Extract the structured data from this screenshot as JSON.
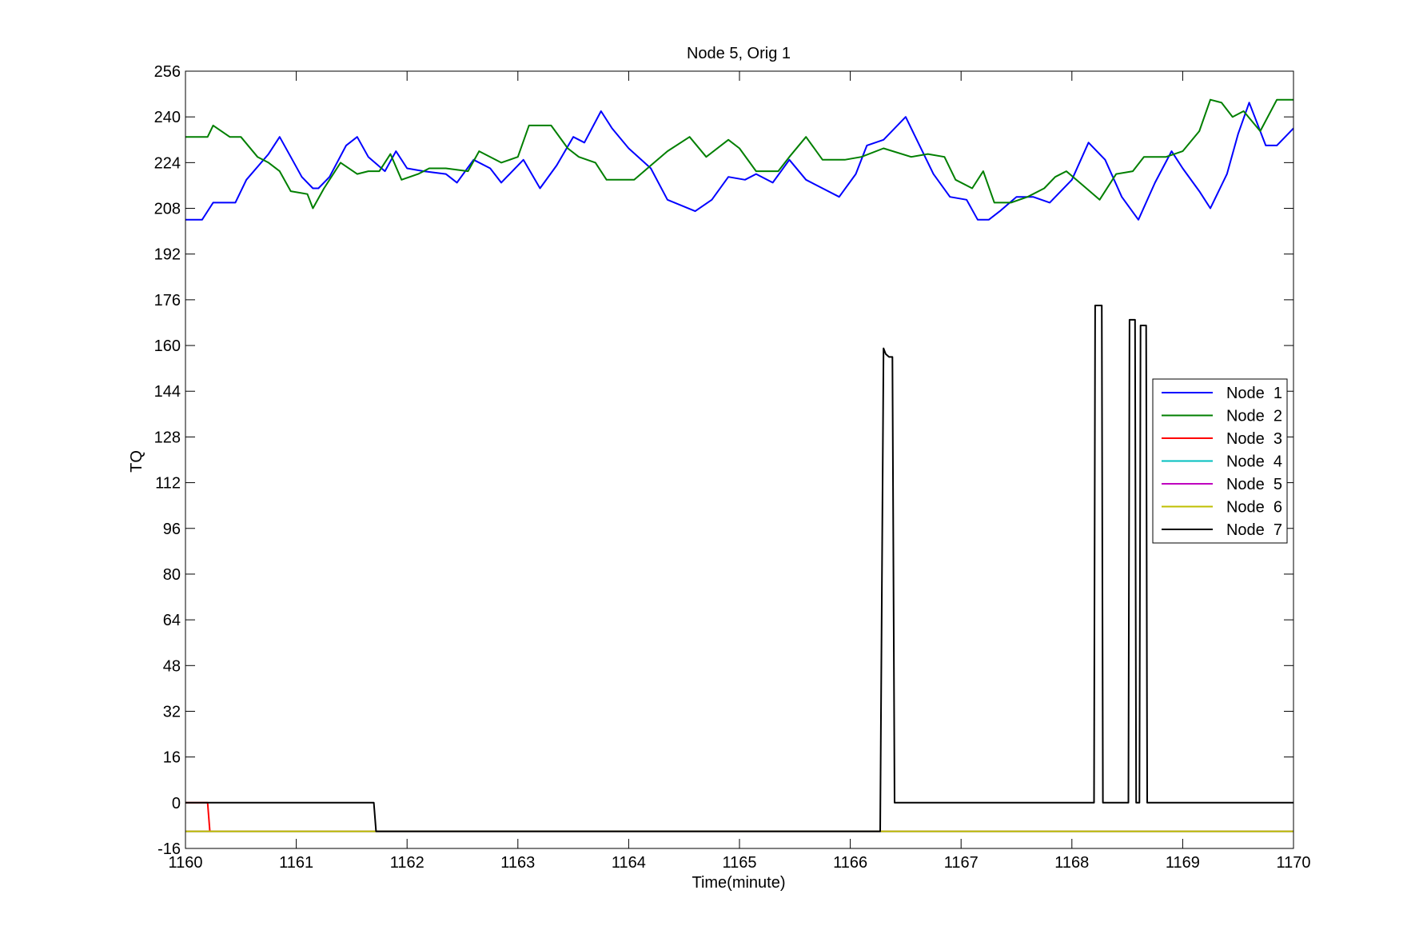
{
  "chart_data": {
    "type": "line",
    "title": "Node 5, Orig 1",
    "xlabel": "Time(minute)",
    "ylabel": "TQ",
    "xlim": [
      1160,
      1170
    ],
    "ylim": [
      -16,
      256
    ],
    "xticks": [
      1160,
      1161,
      1162,
      1163,
      1164,
      1165,
      1166,
      1167,
      1168,
      1169,
      1170
    ],
    "yticks": [
      -16,
      0,
      16,
      32,
      48,
      64,
      80,
      96,
      112,
      128,
      144,
      160,
      176,
      192,
      208,
      224,
      240,
      256
    ],
    "grid": false,
    "legend_position": "right",
    "series": [
      {
        "name": "Node  1",
        "color": "#0000ff",
        "x": [
          1160.0,
          1160.15,
          1160.25,
          1160.45,
          1160.55,
          1160.75,
          1160.85,
          1160.95,
          1161.05,
          1161.15,
          1161.2,
          1161.3,
          1161.45,
          1161.55,
          1161.65,
          1161.8,
          1161.9,
          1162.0,
          1162.15,
          1162.35,
          1162.45,
          1162.6,
          1162.75,
          1162.85,
          1163.05,
          1163.2,
          1163.35,
          1163.5,
          1163.6,
          1163.75,
          1163.85,
          1164.0,
          1164.2,
          1164.35,
          1164.6,
          1164.75,
          1164.9,
          1165.05,
          1165.15,
          1165.3,
          1165.45,
          1165.6,
          1165.75,
          1165.9,
          1166.05,
          1166.15,
          1166.3,
          1166.5,
          1166.6,
          1166.75,
          1166.9,
          1167.05,
          1167.15,
          1167.25,
          1167.35,
          1167.5,
          1167.65,
          1167.8,
          1168.0,
          1168.15,
          1168.3,
          1168.45,
          1168.6,
          1168.75,
          1168.9,
          1169.0,
          1169.15,
          1169.25,
          1169.4,
          1169.5,
          1169.6,
          1169.75,
          1169.85,
          1170.0
        ],
        "y": [
          204,
          204,
          210,
          210,
          218,
          227,
          233,
          226,
          219,
          215,
          215,
          219,
          230,
          233,
          226,
          221,
          228,
          222,
          221,
          220,
          217,
          225,
          222,
          217,
          225,
          215,
          223,
          233,
          231,
          242,
          236,
          229,
          222,
          211,
          207,
          211,
          219,
          218,
          220,
          217,
          225,
          218,
          215,
          212,
          220,
          230,
          232,
          240,
          232,
          220,
          212,
          211,
          204,
          204,
          207,
          212,
          212,
          210,
          218,
          231,
          225,
          212,
          204,
          217,
          228,
          222,
          214,
          208,
          220,
          234,
          245,
          230,
          230,
          236
        ]
      },
      {
        "name": "Node  2",
        "color": "#007f00",
        "x": [
          1160.0,
          1160.2,
          1160.25,
          1160.4,
          1160.5,
          1160.65,
          1160.75,
          1160.85,
          1160.95,
          1161.1,
          1161.15,
          1161.25,
          1161.4,
          1161.55,
          1161.65,
          1161.75,
          1161.85,
          1161.95,
          1162.1,
          1162.2,
          1162.35,
          1162.55,
          1162.65,
          1162.85,
          1163.0,
          1163.1,
          1163.3,
          1163.45,
          1163.55,
          1163.7,
          1163.8,
          1163.95,
          1164.05,
          1164.2,
          1164.35,
          1164.55,
          1164.7,
          1164.9,
          1165.0,
          1165.15,
          1165.35,
          1165.45,
          1165.6,
          1165.75,
          1165.95,
          1166.1,
          1166.3,
          1166.55,
          1166.7,
          1166.85,
          1166.95,
          1167.1,
          1167.2,
          1167.3,
          1167.45,
          1167.6,
          1167.75,
          1167.85,
          1167.95,
          1168.1,
          1168.25,
          1168.4,
          1168.55,
          1168.65,
          1168.85,
          1169.0,
          1169.15,
          1169.25,
          1169.35,
          1169.45,
          1169.55,
          1169.7,
          1169.85,
          1170.0
        ],
        "y": [
          233,
          233,
          237,
          233,
          233,
          226,
          224,
          221,
          214,
          213,
          208,
          215,
          224,
          220,
          221,
          221,
          227,
          218,
          220,
          222,
          222,
          221,
          228,
          224,
          226,
          237,
          237,
          229,
          226,
          224,
          218,
          218,
          218,
          223,
          228,
          233,
          226,
          232,
          229,
          221,
          221,
          226,
          233,
          225,
          225,
          226,
          229,
          226,
          227,
          226,
          218,
          215,
          221,
          210,
          210,
          212,
          215,
          219,
          221,
          216,
          211,
          220,
          221,
          226,
          226,
          228,
          235,
          246,
          245,
          240,
          242,
          235,
          246,
          246
        ]
      },
      {
        "name": "Node  3",
        "color": "#ff0000",
        "x": [
          1160.0,
          1160.2,
          1160.22
        ],
        "y": [
          0,
          0,
          -10
        ]
      },
      {
        "name": "Node  4",
        "color": "#00bfbf",
        "x": [
          1160.0,
          1170.0
        ],
        "y": [
          -10,
          -10
        ]
      },
      {
        "name": "Node  5",
        "color": "#bf00bf",
        "x": [
          1160.0,
          1170.0
        ],
        "y": [
          -10,
          -10
        ]
      },
      {
        "name": "Node  6",
        "color": "#bfbf00",
        "x": [
          1160.0,
          1170.0
        ],
        "y": [
          -10,
          -10
        ]
      },
      {
        "name": "Node  7",
        "color": "#000000",
        "x": [
          1160.0,
          1161.7,
          1161.72,
          1166.27,
          1166.3,
          1166.32,
          1166.35,
          1166.38,
          1166.4,
          1168.2,
          1168.21,
          1168.27,
          1168.28,
          1168.51,
          1168.52,
          1168.57,
          1168.58,
          1168.61,
          1168.62,
          1168.67,
          1168.68,
          1170.0
        ],
        "y": [
          0,
          0,
          -10,
          -10,
          159,
          157,
          156,
          156,
          0,
          0,
          174,
          174,
          0,
          0,
          169,
          169,
          0,
          0,
          167,
          167,
          0,
          0
        ]
      }
    ]
  }
}
